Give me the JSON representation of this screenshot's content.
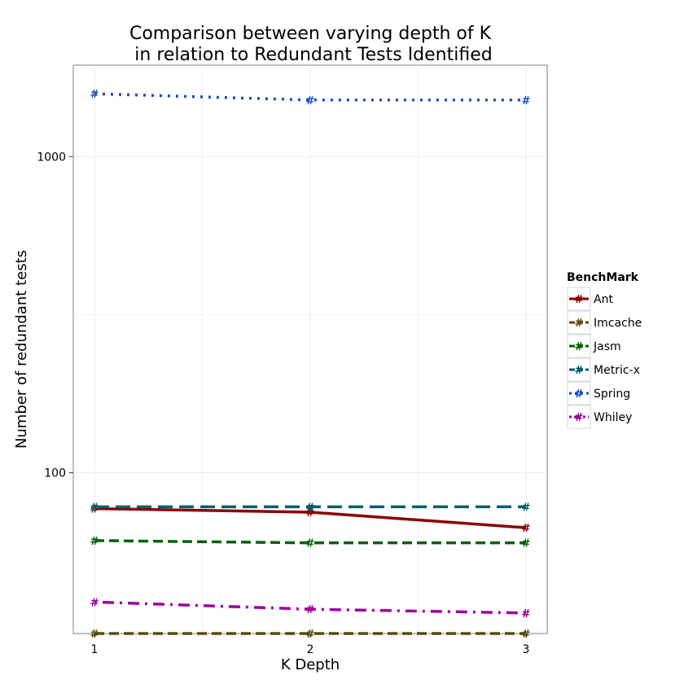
{
  "chart_data": {
    "type": "line",
    "title_lines": [
      "Comparison between varying depth of K",
      "in relation to Redundant Tests Identified"
    ],
    "xlabel": "K Depth",
    "ylabel": "Number of redundant tests",
    "x": [
      1,
      2,
      3
    ],
    "x_tick_labels": [
      "1",
      "2",
      "3"
    ],
    "y_scale": "log",
    "ylim": [
      31,
      1610
    ],
    "y_ticks": [
      100,
      1000
    ],
    "y_tick_labels": [
      "100",
      "1000"
    ],
    "grid": true,
    "legend_title": "BenchMark",
    "legend_position": "right",
    "marker_symbol": "#",
    "series": [
      {
        "name": "Ant",
        "values": [
          77,
          75,
          67
        ],
        "color": "#8b0000",
        "dash": "solid"
      },
      {
        "name": "Imcache",
        "values": [
          31,
          31,
          31
        ],
        "color": "#5a4a10",
        "dash": "dashed"
      },
      {
        "name": "Jasm",
        "values": [
          61,
          60,
          60
        ],
        "color": "#006400",
        "dash": "dashed"
      },
      {
        "name": "Metric-x",
        "values": [
          78,
          78,
          78
        ],
        "color": "#00606b",
        "dash": "longdash"
      },
      {
        "name": "Spring",
        "values": [
          1580,
          1510,
          1510
        ],
        "color": "#1a4fc0",
        "dash": "dotted"
      },
      {
        "name": "Whiley",
        "values": [
          39,
          37,
          36
        ],
        "color": "#a0009f",
        "dash": "dotdash"
      }
    ]
  }
}
